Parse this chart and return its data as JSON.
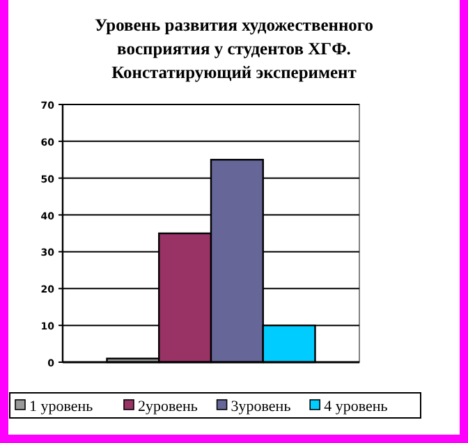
{
  "chart_data": {
    "type": "bar",
    "title": "Уровень  развития художественного восприятия у студентов ХГФ. Констатирующий  эксперимент",
    "categories": [
      null
    ],
    "series": [
      {
        "name": "1  уровень",
        "color": "#999999",
        "values": [
          1
        ]
      },
      {
        "name": "2уровень",
        "color": "#993366",
        "values": [
          35
        ]
      },
      {
        "name": "3уровень",
        "color": "#666699",
        "values": [
          55
        ]
      },
      {
        "name": "4 уровень",
        "color": "#00ccff",
        "values": [
          10
        ]
      }
    ],
    "ylim": [
      0,
      70
    ],
    "yticks": [
      0,
      10,
      20,
      30,
      40,
      50,
      60,
      70
    ],
    "grid": "y",
    "legend": "bottom"
  }
}
